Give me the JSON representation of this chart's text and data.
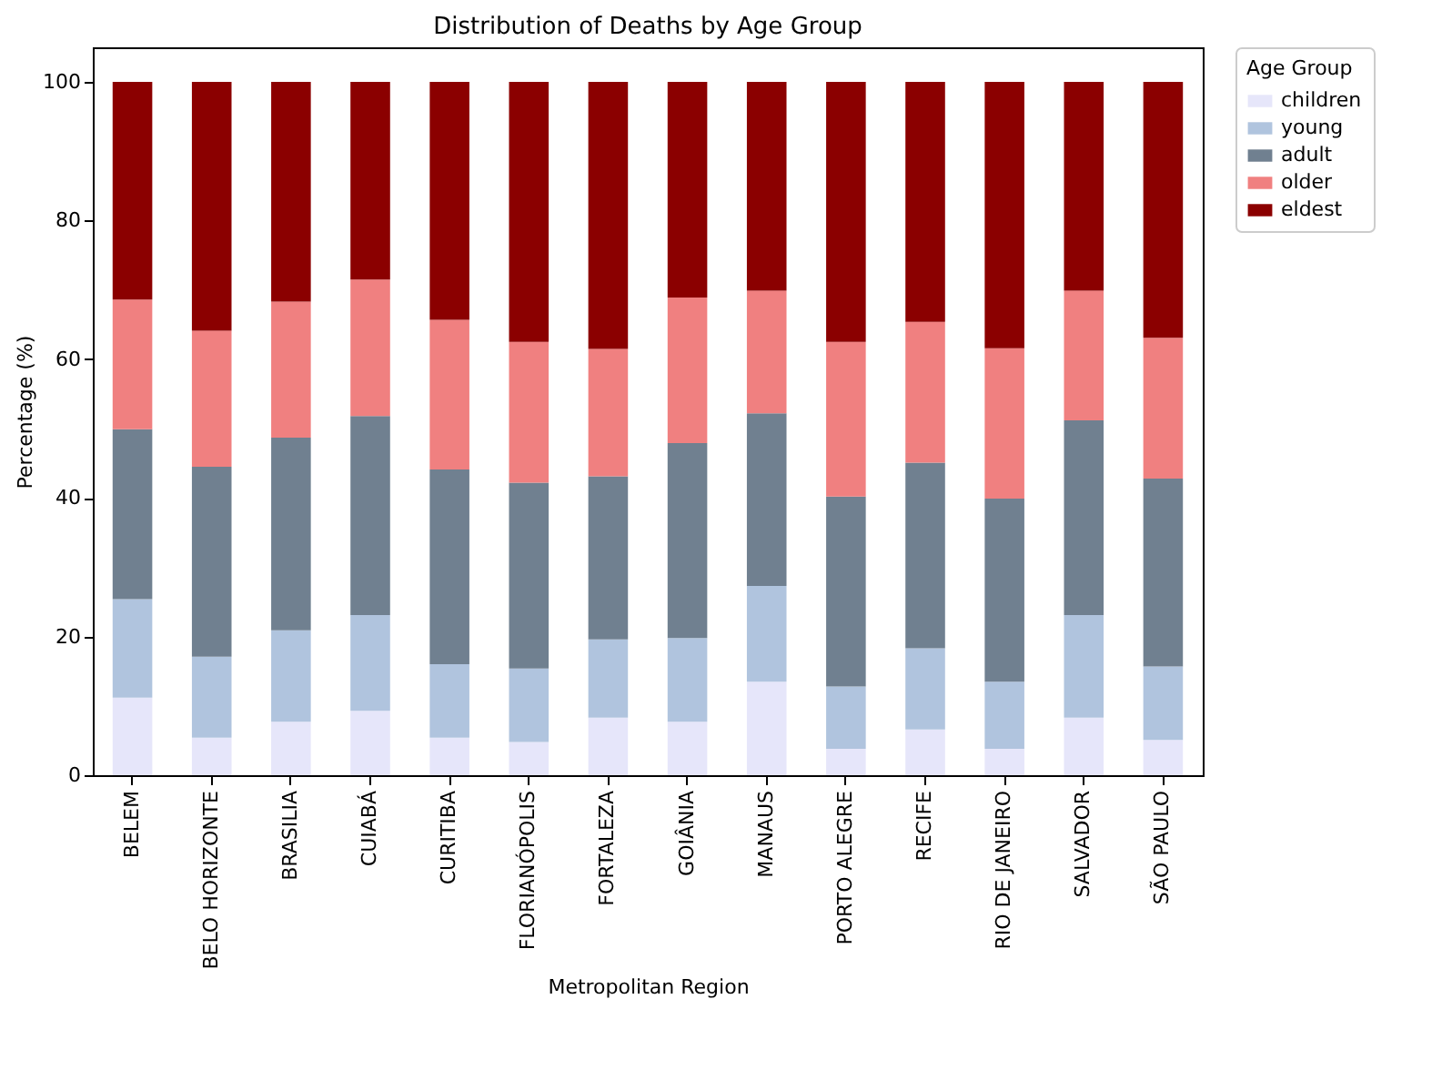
{
  "chart_data": {
    "type": "bar",
    "title": "Distribution of Deaths by Age Group",
    "xlabel": "Metropolitan Region",
    "ylabel": "Percentage (%)",
    "legend_title": "Age Group",
    "categories": [
      "BELEM",
      "BELO HORIZONTE",
      "BRASILIA",
      "CUIABÁ",
      "CURITIBA",
      "FLORIANÓPOLIS",
      "FORTALEZA",
      "GOIÂNIA",
      "MANAUS",
      "PORTO ALEGRE",
      "RECIFE",
      "RIO DE JANEIRO",
      "SALVADOR",
      "SÃO PAULO"
    ],
    "series": [
      {
        "name": "children",
        "color": "#e6e6fa",
        "values": [
          11.2,
          5.4,
          7.7,
          9.3,
          5.4,
          4.8,
          8.3,
          7.7,
          13.5,
          3.8,
          6.6,
          3.8,
          8.3,
          5.1
        ]
      },
      {
        "name": "young",
        "color": "#b0c4de",
        "values": [
          14.2,
          11.7,
          13.2,
          13.8,
          10.6,
          10.6,
          11.3,
          12.1,
          13.8,
          9.0,
          11.7,
          9.7,
          14.8,
          10.6
        ]
      },
      {
        "name": "adult",
        "color": "#708090",
        "values": [
          24.5,
          27.4,
          27.8,
          28.7,
          28.1,
          26.8,
          23.5,
          28.1,
          24.9,
          27.4,
          26.8,
          26.4,
          28.1,
          27.1
        ]
      },
      {
        "name": "older",
        "color": "#f08080",
        "values": [
          18.7,
          19.6,
          19.6,
          19.7,
          21.6,
          20.3,
          18.4,
          21.0,
          17.7,
          22.3,
          20.3,
          21.7,
          18.7,
          20.3
        ]
      },
      {
        "name": "eldest",
        "color": "#8b0000",
        "values": [
          31.4,
          35.9,
          31.7,
          28.5,
          34.3,
          37.5,
          38.5,
          31.1,
          30.1,
          37.5,
          34.6,
          38.4,
          30.1,
          36.9
        ]
      }
    ],
    "stacked": true,
    "ylim": [
      0,
      105
    ],
    "yticks": [
      0,
      20,
      40,
      60,
      80,
      100
    ],
    "legend": "top right"
  }
}
